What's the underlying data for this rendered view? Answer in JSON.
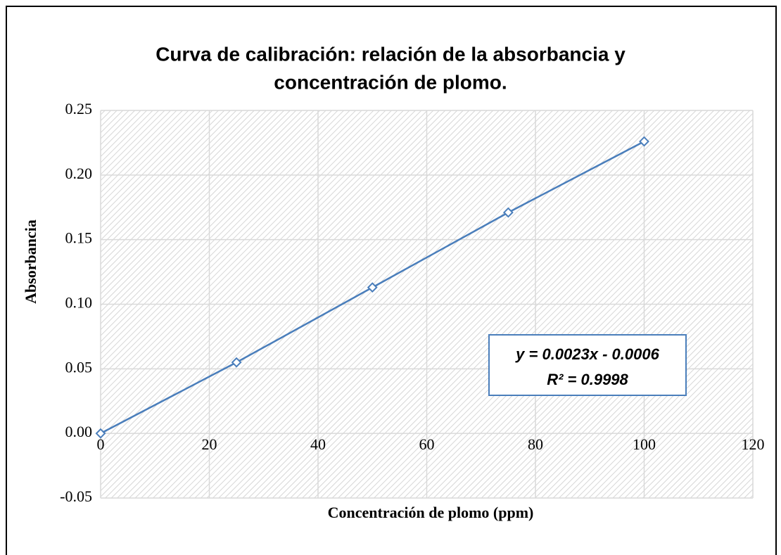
{
  "chart_data": {
    "type": "scatter",
    "title": [
      "Curva de calibración: relación de la absorbancia y",
      "concentración de plomo."
    ],
    "x_label": "Concentración de plomo (ppm)",
    "y_label": "Absorbancia",
    "series": [
      {
        "name": "Absorbancia",
        "color": "#4a7ebb",
        "x": [
          0,
          25,
          50,
          75,
          100
        ],
        "values": [
          0,
          0.055,
          0.113,
          0.171,
          0.226
        ]
      }
    ],
    "xlim": [
      0,
      120
    ],
    "xticks": [
      0,
      20,
      40,
      60,
      80,
      100,
      120
    ],
    "ylim": [
      -0.05,
      0.25
    ],
    "yticks": [
      -0.05,
      {
        "value": 0,
        "label": "0.00"
      },
      0.05,
      {
        "value": 0.1,
        "label": "0.10"
      },
      0.15,
      {
        "value": 0.2,
        "label": "0.20"
      },
      0.25
    ],
    "grid": true,
    "annotations": [
      "y = 0.0023x - 0.0006",
      "R² = 0.9998"
    ]
  }
}
